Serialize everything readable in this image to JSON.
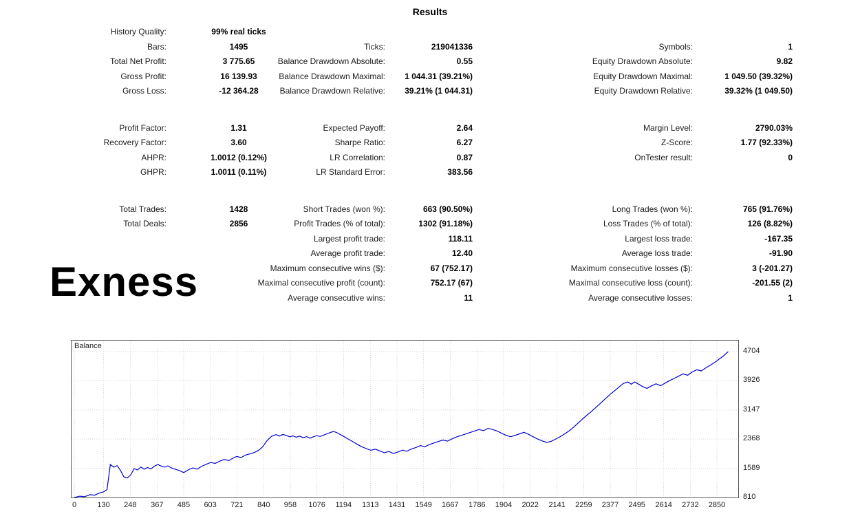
{
  "title": "Results",
  "watermark": "Exness",
  "table": {
    "rows": [
      {
        "c": [
          {
            "l": "History Quality:",
            "v": "99% real ticks"
          },
          null,
          null
        ]
      },
      {
        "c": [
          {
            "l": "Bars:",
            "v": "1495"
          },
          {
            "l": "Ticks:",
            "v": "219041336"
          },
          {
            "l": "Symbols:",
            "v": "1"
          }
        ]
      },
      {
        "c": [
          {
            "l": "Total Net Profit:",
            "v": "3 775.65"
          },
          {
            "l": "Balance Drawdown Absolute:",
            "v": "0.55"
          },
          {
            "l": "Equity Drawdown Absolute:",
            "v": "9.82"
          }
        ]
      },
      {
        "c": [
          {
            "l": "Gross Profit:",
            "v": "16 139.93"
          },
          {
            "l": "Balance Drawdown Maximal:",
            "v": "1 044.31 (39.21%)"
          },
          {
            "l": "Equity Drawdown Maximal:",
            "v": "1 049.50 (39.32%)"
          }
        ]
      },
      {
        "c": [
          {
            "l": "Gross Loss:",
            "v": "-12 364.28"
          },
          {
            "l": "Balance Drawdown Relative:",
            "v": "39.21% (1 044.31)"
          },
          {
            "l": "Equity Drawdown Relative:",
            "v": "39.32% (1 049.50)"
          }
        ]
      },
      {
        "spacer": true
      },
      {
        "c": [
          {
            "l": "Profit Factor:",
            "v": "1.31"
          },
          {
            "l": "Expected Payoff:",
            "v": "2.64"
          },
          {
            "l": "Margin Level:",
            "v": "2790.03%"
          }
        ]
      },
      {
        "c": [
          {
            "l": "Recovery Factor:",
            "v": "3.60"
          },
          {
            "l": "Sharpe Ratio:",
            "v": "6.27"
          },
          {
            "l": "Z-Score:",
            "v": "1.77 (92.33%)"
          }
        ]
      },
      {
        "c": [
          {
            "l": "AHPR:",
            "v": "1.0012 (0.12%)"
          },
          {
            "l": "LR Correlation:",
            "v": "0.87"
          },
          {
            "l": "OnTester result:",
            "v": "0"
          }
        ]
      },
      {
        "c": [
          {
            "l": "GHPR:",
            "v": "1.0011 (0.11%)"
          },
          {
            "l": "LR Standard Error:",
            "v": "383.56"
          },
          null
        ]
      },
      {
        "spacer": true
      },
      {
        "c": [
          {
            "l": "Total Trades:",
            "v": "1428"
          },
          {
            "l": "Short Trades (won %):",
            "v": "663 (90.50%)"
          },
          {
            "l": "Long Trades (won %):",
            "v": "765 (91.76%)"
          }
        ]
      },
      {
        "c": [
          {
            "l": "Total Deals:",
            "v": "2856"
          },
          {
            "l": "Profit Trades (% of total):",
            "v": "1302 (91.18%)"
          },
          {
            "l": "Loss Trades (% of total):",
            "v": "126 (8.82%)"
          }
        ]
      },
      {
        "c": [
          null,
          {
            "l": "Largest profit trade:",
            "v": "118.11"
          },
          {
            "l": "Largest loss trade:",
            "v": "-167.35"
          }
        ]
      },
      {
        "c": [
          null,
          {
            "l": "Average profit trade:",
            "v": "12.40"
          },
          {
            "l": "Average loss trade:",
            "v": "-91.90"
          }
        ]
      },
      {
        "c": [
          null,
          {
            "l": "Maximum consecutive wins ($):",
            "v": "67 (752.17)"
          },
          {
            "l": "Maximum consecutive losses ($):",
            "v": "3 (-201.27)"
          }
        ]
      },
      {
        "c": [
          null,
          {
            "l": "Maximal consecutive profit (count):",
            "v": "752.17 (67)"
          },
          {
            "l": "Maximal consecutive loss (count):",
            "v": "-201.55 (2)"
          }
        ]
      },
      {
        "c": [
          null,
          {
            "l": "Average consecutive wins:",
            "v": "11"
          },
          {
            "l": "Average consecutive losses:",
            "v": "1"
          }
        ]
      }
    ]
  },
  "chart_data": {
    "type": "line",
    "series_label": "Balance",
    "line_color": "#0000CC",
    "x_range": [
      0,
      2920
    ],
    "y_range": [
      810,
      5000
    ],
    "x_ticks": [
      0,
      130,
      248,
      367,
      485,
      603,
      721,
      840,
      958,
      1076,
      1194,
      1313,
      1431,
      1549,
      1667,
      1786,
      1904,
      2022,
      2141,
      2259,
      2377,
      2495,
      2614,
      2732,
      2850
    ],
    "y_ticks": [
      810,
      1589,
      2368,
      3147,
      3926,
      4704
    ],
    "points": [
      [
        0,
        810
      ],
      [
        25,
        845
      ],
      [
        45,
        830
      ],
      [
        70,
        885
      ],
      [
        90,
        870
      ],
      [
        110,
        925
      ],
      [
        130,
        960
      ],
      [
        145,
        1020
      ],
      [
        160,
        1690
      ],
      [
        175,
        1620
      ],
      [
        190,
        1660
      ],
      [
        205,
        1530
      ],
      [
        220,
        1360
      ],
      [
        235,
        1330
      ],
      [
        250,
        1410
      ],
      [
        265,
        1580
      ],
      [
        280,
        1545
      ],
      [
        295,
        1625
      ],
      [
        310,
        1565
      ],
      [
        325,
        1610
      ],
      [
        340,
        1570
      ],
      [
        355,
        1645
      ],
      [
        370,
        1690
      ],
      [
        385,
        1650
      ],
      [
        400,
        1620
      ],
      [
        415,
        1655
      ],
      [
        430,
        1600
      ],
      [
        450,
        1560
      ],
      [
        470,
        1520
      ],
      [
        485,
        1475
      ],
      [
        505,
        1545
      ],
      [
        525,
        1600
      ],
      [
        545,
        1565
      ],
      [
        565,
        1645
      ],
      [
        585,
        1695
      ],
      [
        605,
        1745
      ],
      [
        625,
        1720
      ],
      [
        645,
        1780
      ],
      [
        665,
        1825
      ],
      [
        685,
        1795
      ],
      [
        705,
        1865
      ],
      [
        720,
        1905
      ],
      [
        740,
        1875
      ],
      [
        760,
        1945
      ],
      [
        780,
        1975
      ],
      [
        800,
        2015
      ],
      [
        820,
        2080
      ],
      [
        835,
        2160
      ],
      [
        855,
        2330
      ],
      [
        875,
        2445
      ],
      [
        895,
        2490
      ],
      [
        910,
        2450
      ],
      [
        925,
        2495
      ],
      [
        940,
        2465
      ],
      [
        955,
        2430
      ],
      [
        970,
        2455
      ],
      [
        985,
        2420
      ],
      [
        1000,
        2450
      ],
      [
        1015,
        2405
      ],
      [
        1030,
        2435
      ],
      [
        1045,
        2395
      ],
      [
        1060,
        2430
      ],
      [
        1075,
        2460
      ],
      [
        1090,
        2440
      ],
      [
        1105,
        2475
      ],
      [
        1120,
        2510
      ],
      [
        1135,
        2545
      ],
      [
        1150,
        2575
      ],
      [
        1165,
        2540
      ],
      [
        1180,
        2490
      ],
      [
        1195,
        2440
      ],
      [
        1215,
        2370
      ],
      [
        1235,
        2300
      ],
      [
        1255,
        2230
      ],
      [
        1275,
        2165
      ],
      [
        1295,
        2115
      ],
      [
        1315,
        2070
      ],
      [
        1335,
        2100
      ],
      [
        1355,
        2055
      ],
      [
        1375,
        2005
      ],
      [
        1395,
        2040
      ],
      [
        1415,
        1985
      ],
      [
        1435,
        2025
      ],
      [
        1455,
        2075
      ],
      [
        1475,
        2045
      ],
      [
        1495,
        2105
      ],
      [
        1515,
        2145
      ],
      [
        1535,
        2195
      ],
      [
        1555,
        2165
      ],
      [
        1575,
        2225
      ],
      [
        1595,
        2265
      ],
      [
        1615,
        2305
      ],
      [
        1635,
        2345
      ],
      [
        1655,
        2315
      ],
      [
        1675,
        2375
      ],
      [
        1695,
        2425
      ],
      [
        1715,
        2465
      ],
      [
        1735,
        2505
      ],
      [
        1755,
        2545
      ],
      [
        1775,
        2585
      ],
      [
        1795,
        2625
      ],
      [
        1815,
        2595
      ],
      [
        1835,
        2655
      ],
      [
        1855,
        2625
      ],
      [
        1875,
        2585
      ],
      [
        1895,
        2525
      ],
      [
        1915,
        2470
      ],
      [
        1935,
        2430
      ],
      [
        1955,
        2470
      ],
      [
        1975,
        2510
      ],
      [
        1995,
        2550
      ],
      [
        2015,
        2495
      ],
      [
        2035,
        2430
      ],
      [
        2055,
        2370
      ],
      [
        2075,
        2320
      ],
      [
        2095,
        2280
      ],
      [
        2115,
        2310
      ],
      [
        2135,
        2370
      ],
      [
        2155,
        2435
      ],
      [
        2175,
        2510
      ],
      [
        2195,
        2590
      ],
      [
        2215,
        2690
      ],
      [
        2235,
        2800
      ],
      [
        2255,
        2915
      ],
      [
        2275,
        3015
      ],
      [
        2295,
        3115
      ],
      [
        2315,
        3225
      ],
      [
        2335,
        3335
      ],
      [
        2355,
        3445
      ],
      [
        2375,
        3555
      ],
      [
        2395,
        3655
      ],
      [
        2415,
        3755
      ],
      [
        2435,
        3855
      ],
      [
        2455,
        3895
      ],
      [
        2470,
        3835
      ],
      [
        2485,
        3895
      ],
      [
        2500,
        3845
      ],
      [
        2520,
        3775
      ],
      [
        2540,
        3725
      ],
      [
        2560,
        3790
      ],
      [
        2580,
        3845
      ],
      [
        2600,
        3795
      ],
      [
        2620,
        3865
      ],
      [
        2640,
        3930
      ],
      [
        2660,
        3990
      ],
      [
        2680,
        4050
      ],
      [
        2700,
        4110
      ],
      [
        2720,
        4075
      ],
      [
        2740,
        4160
      ],
      [
        2760,
        4220
      ],
      [
        2780,
        4190
      ],
      [
        2800,
        4270
      ],
      [
        2820,
        4340
      ],
      [
        2840,
        4415
      ],
      [
        2860,
        4505
      ],
      [
        2880,
        4595
      ],
      [
        2900,
        4704
      ]
    ]
  }
}
